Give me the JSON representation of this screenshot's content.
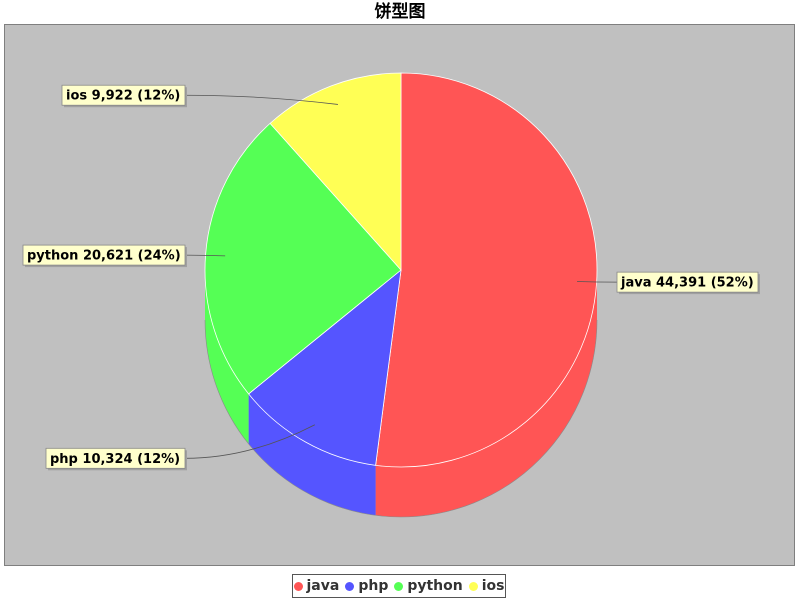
{
  "title": "饼型图",
  "chart_data": {
    "type": "pie",
    "title": "饼型图",
    "style": "3d",
    "slices": [
      {
        "name": "java",
        "value": 44391,
        "percent_label": "52%",
        "label": "java 44,391 (52%)",
        "color": "#ff5555"
      },
      {
        "name": "php",
        "value": 10324,
        "percent_label": "12%",
        "label": "php 10,324 (12%)",
        "color": "#5555ff"
      },
      {
        "name": "python",
        "value": 20621,
        "percent_label": "24%",
        "label": "python 20,621 (24%)",
        "color": "#55ff55"
      },
      {
        "name": "ios",
        "value": 9922,
        "percent_label": "12%",
        "label": "ios 9,922 (12%)",
        "color": "#ffff55"
      }
    ],
    "legend_position": "bottom",
    "background": "#c0c0c0",
    "label_box_color": "#ffffcc"
  }
}
